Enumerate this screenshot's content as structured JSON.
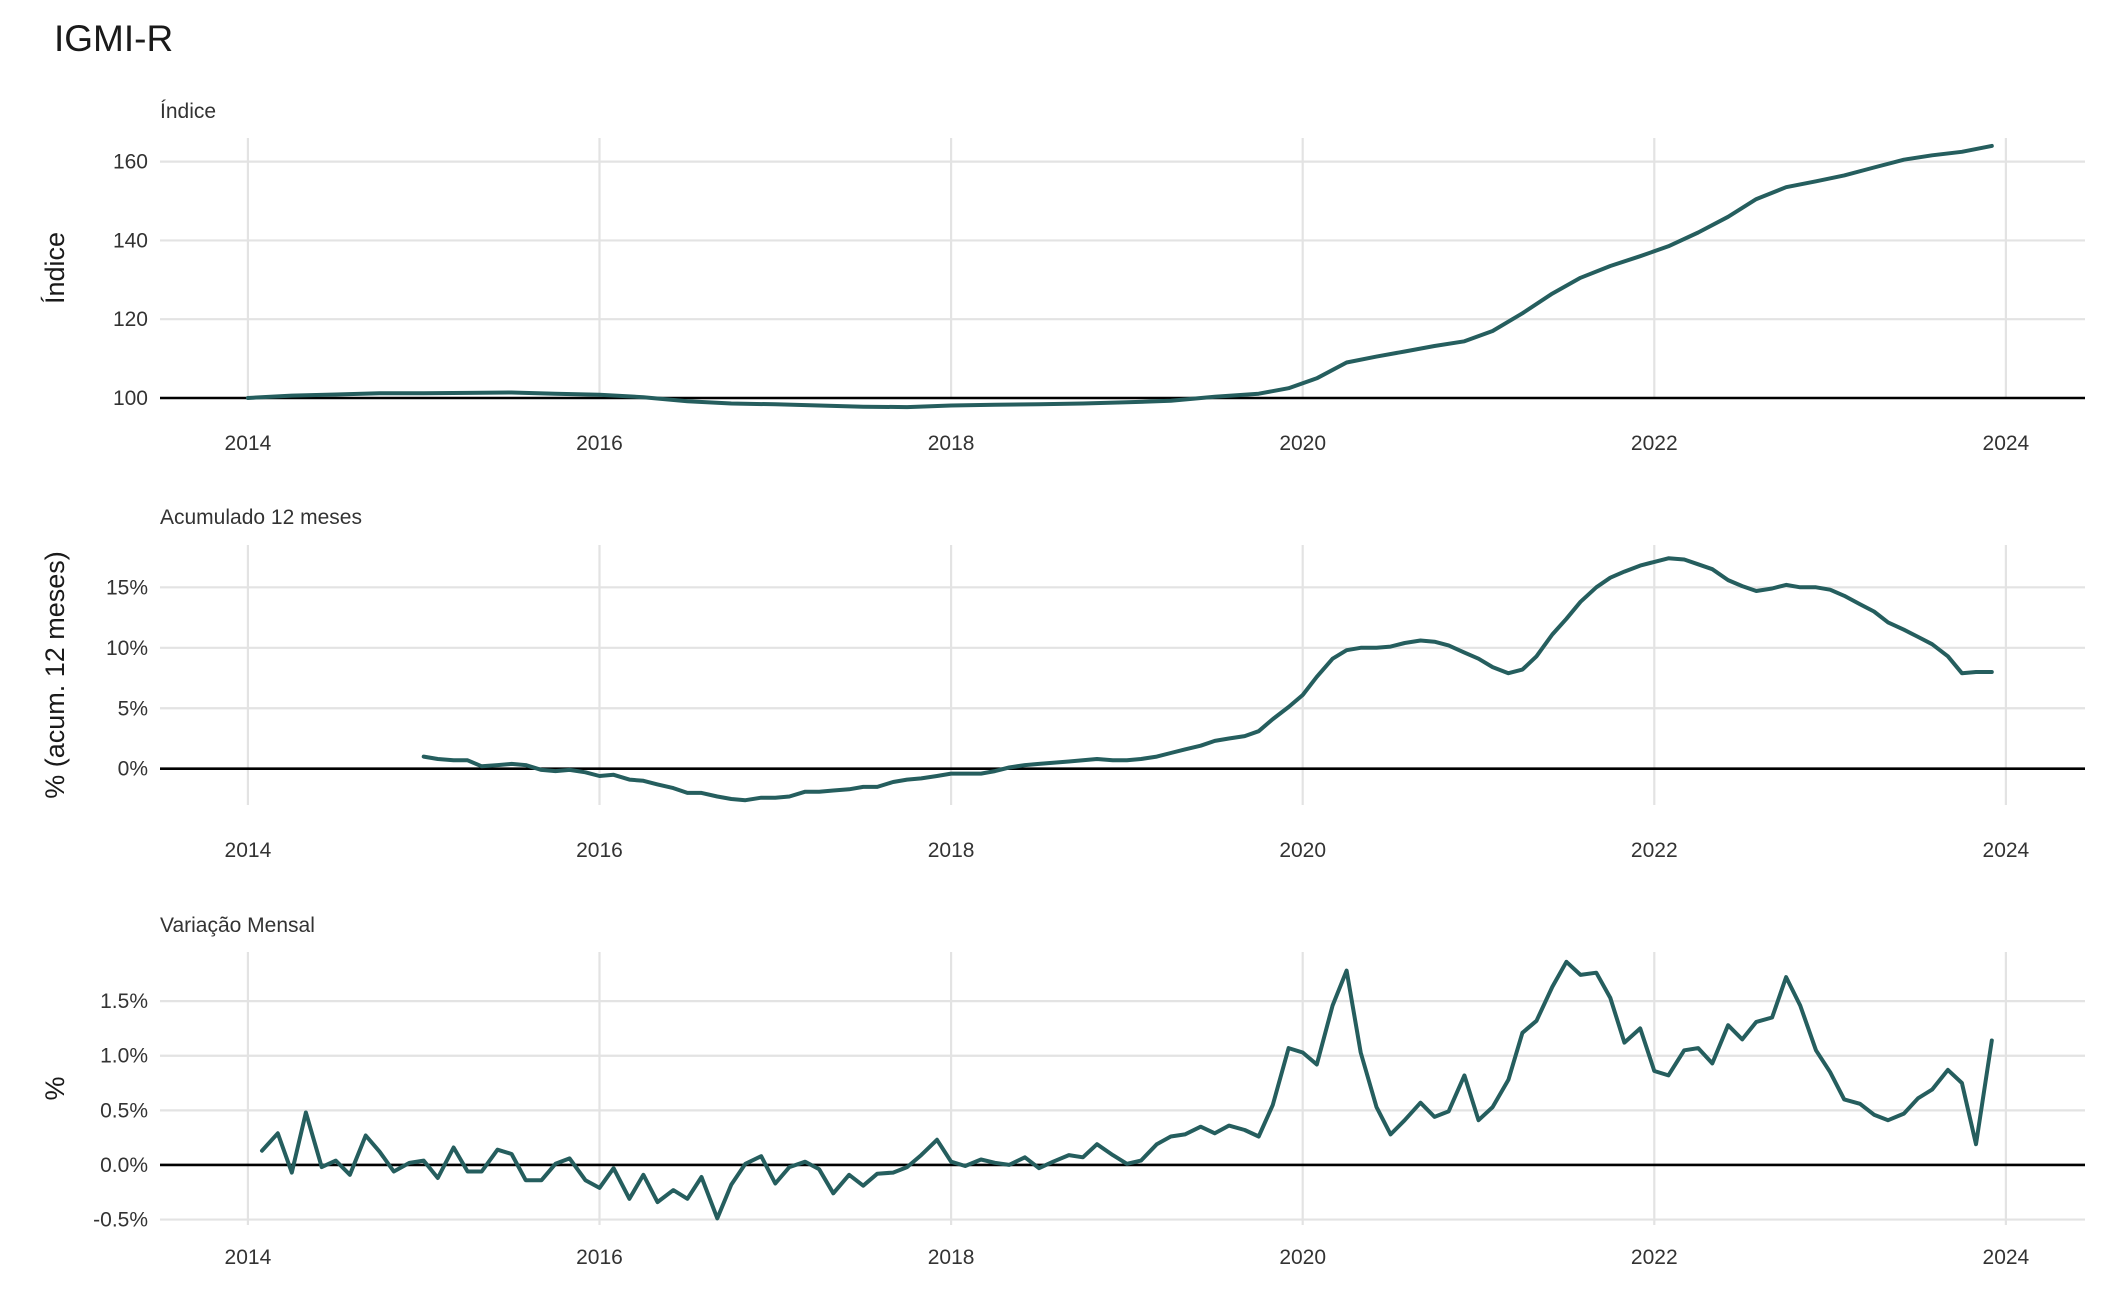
{
  "title": "IGMI-R",
  "colors": {
    "series": "#255e5e",
    "grid": "#e3e3e3",
    "zero": "#000000"
  },
  "chart_data": [
    {
      "type": "line",
      "subtitle": "Índice",
      "ylabel": "Índice",
      "xlabel": "",
      "x_ticks": [
        "2014",
        "2016",
        "2018",
        "2020",
        "2022",
        "2024"
      ],
      "x_range": [
        2013.5,
        2024.45
      ],
      "y_ticks": [
        100,
        120,
        140,
        160
      ],
      "y_tick_labels": [
        "100",
        "120",
        "140",
        "160"
      ],
      "ylim": [
        100,
        166
      ],
      "reference_line": 100,
      "grid": true,
      "series": [
        {
          "x": [
            2014.0,
            2014.25,
            2014.5,
            2014.75,
            2015.0,
            2015.25,
            2015.5,
            2015.75,
            2016.0,
            2016.25,
            2016.5,
            2016.75,
            2017.0,
            2017.25,
            2017.5,
            2017.75,
            2018.0,
            2018.25,
            2018.5,
            2018.75,
            2019.0,
            2019.25,
            2019.5,
            2019.75,
            2019.92,
            2020.08,
            2020.25,
            2020.42,
            2020.58,
            2020.75,
            2020.92,
            2021.08,
            2021.25,
            2021.42,
            2021.58,
            2021.75,
            2021.92,
            2022.08,
            2022.25,
            2022.42,
            2022.58,
            2022.75,
            2022.92,
            2023.08,
            2023.25,
            2023.42,
            2023.58,
            2023.75,
            2023.92
          ],
          "y": [
            100,
            100.6,
            100.9,
            101.2,
            101.2,
            101.3,
            101.4,
            101.1,
            100.8,
            100.2,
            99.2,
            98.6,
            98.4,
            98.1,
            97.8,
            97.7,
            98.1,
            98.3,
            98.4,
            98.6,
            98.9,
            99.3,
            100.3,
            101.1,
            102.5,
            105.0,
            109.0,
            110.5,
            111.8,
            113.2,
            114.4,
            117.0,
            121.5,
            126.5,
            130.5,
            133.5,
            136.0,
            138.5,
            142.0,
            146.0,
            150.5,
            153.5,
            155.0,
            156.5,
            158.5,
            160.5,
            161.6,
            162.5,
            164.0
          ]
        }
      ]
    },
    {
      "type": "line",
      "subtitle": "Acumulado 12 meses",
      "ylabel": "% (acum. 12 meses)",
      "xlabel": "",
      "x_ticks": [
        "2014",
        "2016",
        "2018",
        "2020",
        "2022",
        "2024"
      ],
      "x_range": [
        2013.5,
        2024.45
      ],
      "y_ticks": [
        0,
        5,
        10,
        15
      ],
      "y_tick_labels": [
        "0%",
        "5%",
        "10%",
        "15%"
      ],
      "ylim": [
        -3,
        18.5
      ],
      "reference_line": 0,
      "grid": true,
      "series": [
        {
          "x": [
            2015.0,
            2015.08,
            2015.17,
            2015.25,
            2015.33,
            2015.42,
            2015.5,
            2015.58,
            2015.67,
            2015.75,
            2015.83,
            2015.92,
            2016.0,
            2016.08,
            2016.17,
            2016.25,
            2016.33,
            2016.42,
            2016.5,
            2016.58,
            2016.67,
            2016.75,
            2016.83,
            2016.92,
            2017.0,
            2017.08,
            2017.17,
            2017.25,
            2017.33,
            2017.42,
            2017.5,
            2017.58,
            2017.67,
            2017.75,
            2017.83,
            2017.92,
            2018.0,
            2018.08,
            2018.17,
            2018.25,
            2018.33,
            2018.42,
            2018.5,
            2018.58,
            2018.67,
            2018.75,
            2018.83,
            2018.92,
            2019.0,
            2019.08,
            2019.17,
            2019.25,
            2019.33,
            2019.42,
            2019.5,
            2019.58,
            2019.67,
            2019.75,
            2019.83,
            2019.92,
            2020.0,
            2020.08,
            2020.17,
            2020.25,
            2020.33,
            2020.42,
            2020.5,
            2020.58,
            2020.67,
            2020.75,
            2020.83,
            2020.92,
            2021.0,
            2021.08,
            2021.17,
            2021.25,
            2021.33,
            2021.42,
            2021.5,
            2021.58,
            2021.67,
            2021.75,
            2021.83,
            2021.92,
            2022.0,
            2022.08,
            2022.17,
            2022.25,
            2022.33,
            2022.42,
            2022.5,
            2022.58,
            2022.67,
            2022.75,
            2022.83,
            2022.92,
            2023.0,
            2023.08,
            2023.17,
            2023.25,
            2023.33,
            2023.42,
            2023.5,
            2023.58,
            2023.67,
            2023.75,
            2023.83,
            2023.92
          ],
          "y": [
            1.0,
            0.8,
            0.7,
            0.7,
            0.2,
            0.3,
            0.4,
            0.3,
            -0.1,
            -0.2,
            -0.1,
            -0.3,
            -0.6,
            -0.5,
            -0.9,
            -1.0,
            -1.3,
            -1.6,
            -2.0,
            -2.0,
            -2.3,
            -2.5,
            -2.6,
            -2.4,
            -2.4,
            -2.3,
            -1.9,
            -1.9,
            -1.8,
            -1.7,
            -1.5,
            -1.5,
            -1.1,
            -0.9,
            -0.8,
            -0.6,
            -0.4,
            -0.4,
            -0.4,
            -0.2,
            0.1,
            0.3,
            0.4,
            0.5,
            0.6,
            0.7,
            0.8,
            0.7,
            0.7,
            0.8,
            1.0,
            1.3,
            1.6,
            1.9,
            2.3,
            2.5,
            2.7,
            3.1,
            4.1,
            5.1,
            6.1,
            7.6,
            9.1,
            9.8,
            10.0,
            10.0,
            10.1,
            10.4,
            10.6,
            10.5,
            10.2,
            9.6,
            9.1,
            8.4,
            7.9,
            8.2,
            9.3,
            11.1,
            12.4,
            13.8,
            15.0,
            15.8,
            16.3,
            16.8,
            17.1,
            17.4,
            17.3,
            16.9,
            16.5,
            15.6,
            15.1,
            14.7,
            14.9,
            15.2,
            15.0,
            15.0,
            14.8,
            14.3,
            13.6,
            13.0,
            12.1,
            11.5,
            10.9,
            10.3,
            9.3,
            7.9,
            8.0,
            8.0
          ]
        }
      ]
    },
    {
      "type": "line",
      "subtitle": "Variação Mensal",
      "ylabel": "%",
      "xlabel": "",
      "x_ticks": [
        "2014",
        "2016",
        "2018",
        "2020",
        "2022",
        "2024"
      ],
      "x_range": [
        2013.5,
        2024.45
      ],
      "y_ticks": [
        -0.5,
        0,
        0.5,
        1.0,
        1.5
      ],
      "y_tick_labels": [
        "-0.5%",
        "0.0%",
        "0.5%",
        "1.0%",
        "1.5%"
      ],
      "ylim": [
        -0.55,
        1.95
      ],
      "reference_line": 0,
      "grid": true,
      "series": [
        {
          "x": [
            2014.08,
            2014.17,
            2014.25,
            2014.33,
            2014.42,
            2014.5,
            2014.58,
            2014.67,
            2014.75,
            2014.83,
            2014.92,
            2015.0,
            2015.08,
            2015.17,
            2015.25,
            2015.33,
            2015.42,
            2015.5,
            2015.58,
            2015.67,
            2015.75,
            2015.83,
            2015.92,
            2016.0,
            2016.08,
            2016.17,
            2016.25,
            2016.33,
            2016.42,
            2016.5,
            2016.58,
            2016.67,
            2016.75,
            2016.83,
            2016.92,
            2017.0,
            2017.08,
            2017.17,
            2017.25,
            2017.33,
            2017.42,
            2017.5,
            2017.58,
            2017.67,
            2017.75,
            2017.83,
            2017.92,
            2018.0,
            2018.08,
            2018.17,
            2018.25,
            2018.33,
            2018.42,
            2018.5,
            2018.58,
            2018.67,
            2018.75,
            2018.83,
            2018.92,
            2019.0,
            2019.08,
            2019.17,
            2019.25,
            2019.33,
            2019.42,
            2019.5,
            2019.58,
            2019.67,
            2019.75,
            2019.83,
            2019.92,
            2020.0,
            2020.08,
            2020.17,
            2020.25,
            2020.33,
            2020.42,
            2020.5,
            2020.58,
            2020.67,
            2020.75,
            2020.83,
            2020.92,
            2021.0,
            2021.08,
            2021.17,
            2021.25,
            2021.33,
            2021.42,
            2021.5,
            2021.58,
            2021.67,
            2021.75,
            2021.83,
            2021.92,
            2022.0,
            2022.08,
            2022.17,
            2022.25,
            2022.33,
            2022.42,
            2022.5,
            2022.58,
            2022.67,
            2022.75,
            2022.83,
            2022.92,
            2023.0,
            2023.08,
            2023.17,
            2023.25,
            2023.33,
            2023.42,
            2023.5,
            2023.58,
            2023.67,
            2023.75,
            2023.83,
            2023.92
          ],
          "y": [
            0.13,
            0.29,
            -0.07,
            0.48,
            -0.02,
            0.04,
            -0.09,
            0.27,
            0.12,
            -0.06,
            0.02,
            0.04,
            -0.12,
            0.16,
            -0.06,
            -0.06,
            0.14,
            0.1,
            -0.14,
            -0.14,
            0.01,
            0.06,
            -0.14,
            -0.21,
            -0.03,
            -0.31,
            -0.09,
            -0.34,
            -0.23,
            -0.31,
            -0.11,
            -0.49,
            -0.18,
            0.01,
            0.08,
            -0.17,
            -0.02,
            0.03,
            -0.04,
            -0.26,
            -0.09,
            -0.19,
            -0.08,
            -0.07,
            -0.02,
            0.09,
            0.23,
            0.03,
            -0.01,
            0.05,
            0.02,
            0.0,
            0.07,
            -0.03,
            0.03,
            0.09,
            0.07,
            0.19,
            0.09,
            0.01,
            0.04,
            0.19,
            0.26,
            0.28,
            0.35,
            0.29,
            0.36,
            0.32,
            0.26,
            0.55,
            1.07,
            1.03,
            0.92,
            1.46,
            1.78,
            1.03,
            0.53,
            0.28,
            0.41,
            0.57,
            0.44,
            0.49,
            0.82,
            0.41,
            0.53,
            0.78,
            1.21,
            1.32,
            1.63,
            1.86,
            1.74,
            1.76,
            1.53,
            1.12,
            1.25,
            0.86,
            0.82,
            1.05,
            1.07,
            0.93,
            1.28,
            1.15,
            1.31,
            1.35,
            1.72,
            1.46,
            1.05,
            0.85,
            0.6,
            0.56,
            0.46,
            0.41,
            0.47,
            0.61,
            0.69,
            0.87,
            0.75,
            0.19,
            1.14
          ]
        }
      ]
    }
  ]
}
